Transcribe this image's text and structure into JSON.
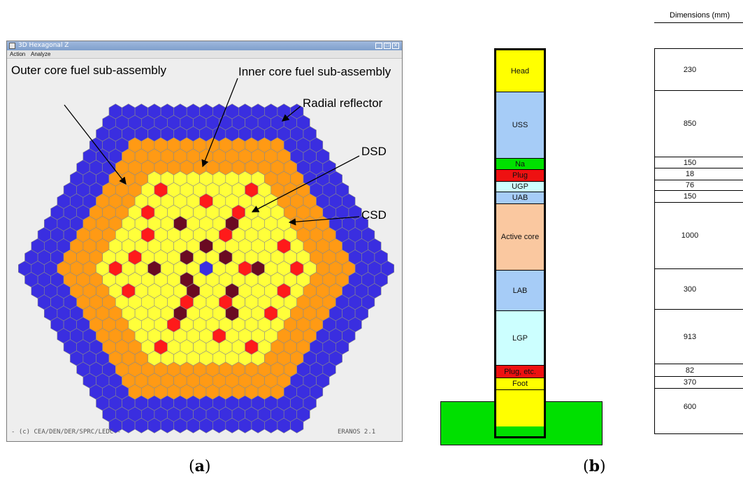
{
  "window": {
    "title": "3D Hexagonal Z",
    "menu": [
      "Action",
      "Analyze"
    ],
    "footer_left": "- (c) CEA/DEN/DER/SPRC/LEDC -",
    "footer_right": "ERANOS 2.1"
  },
  "core_map": {
    "annotations": {
      "outer": "Outer core fuel sub-assembly",
      "inner": "Inner core fuel sub-assembly",
      "reflector": "Radial reflector",
      "dsd": "DSD",
      "csd": "CSD"
    },
    "colors": {
      "reflector": "#3a2ee0",
      "outer_core": "#ff9a14",
      "inner_core": "#ffff3a",
      "csd": "#ff1a1a",
      "dsd": "#6a0a22",
      "center": "#3a2ee0"
    }
  },
  "captions": {
    "a": "a",
    "b": "b"
  },
  "column": {
    "header": "Dimensions (mm)",
    "segments": [
      {
        "label": "Head",
        "dim": "230",
        "color": "#ffff00"
      },
      {
        "label": "USS",
        "dim": "850",
        "color": "#a6ccf7"
      },
      {
        "label": "Na",
        "dim": "150",
        "color": "#00e000"
      },
      {
        "label": "Plug",
        "dim": "18",
        "color": "#ee1111"
      },
      {
        "label": "UGP",
        "dim": "76",
        "color": "#ccffff"
      },
      {
        "label": "UAB",
        "dim": "150",
        "color": "#a6ccf7"
      },
      {
        "label": "Active core",
        "dim": "1000",
        "color": "#fac8a0"
      },
      {
        "label": "LAB",
        "dim": "300",
        "color": "#a6ccf7"
      },
      {
        "label": "LGP",
        "dim": "913",
        "color": "#ccffff"
      },
      {
        "label": "Plug, etc.",
        "dim": "82",
        "color": "#ee1111"
      },
      {
        "label": "Foot",
        "dim": "370",
        "color": "#ffff00"
      },
      {
        "label": "",
        "dim": "600",
        "color": "#ffff00"
      }
    ],
    "base_color": "#00e000"
  }
}
